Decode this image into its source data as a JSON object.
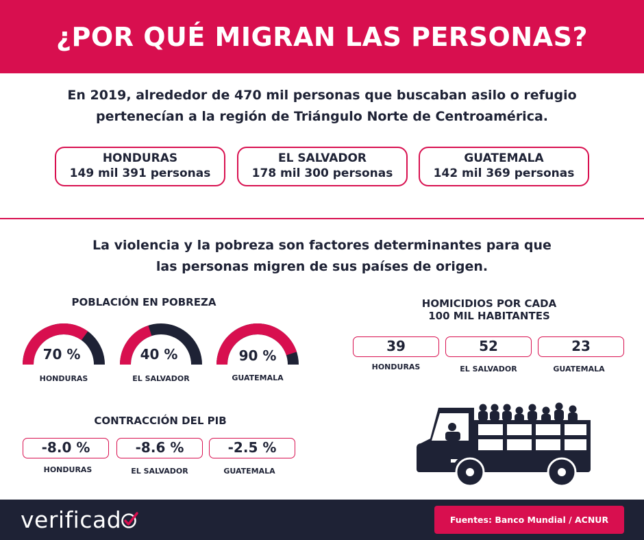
{
  "header": {
    "title": "¿POR QUÉ MIGRAN LAS PERSONAS?"
  },
  "intro": {
    "line1": "En 2019, alrededor de 470 mil personas que buscaban asilo o refugio",
    "line2": "pertenecían a la región de Triángulo Norte de Centroamérica."
  },
  "countries": [
    {
      "name": "HONDURAS",
      "value": "149 mil 391 personas"
    },
    {
      "name": "EL SALVADOR",
      "value": "178 mil 300 personas"
    },
    {
      "name": "GUATEMALA",
      "value": "142 mil 369 personas"
    }
  ],
  "factors": {
    "line1": "La violencia y la pobreza son factores determinantes para que",
    "line2": "las personas migren de sus países de origen."
  },
  "poverty": {
    "title": "POBLACIÓN EN POBREZA",
    "items": [
      {
        "country": "HONDURAS",
        "label": "70 %",
        "value": 70
      },
      {
        "country": "EL SALVADOR",
        "label": "40 %",
        "value": 40
      },
      {
        "country": "GUATEMALA",
        "label": "90 %",
        "value": 90
      }
    ]
  },
  "homicides": {
    "title_line1": "HOMICIDIOS POR CADA",
    "title_line2": "100 MIL HABITANTES",
    "items": [
      {
        "country": "HONDURAS",
        "value": "39"
      },
      {
        "country": "EL SALVADOR",
        "value": "52"
      },
      {
        "country": "GUATEMALA",
        "value": "23"
      }
    ]
  },
  "gdp": {
    "title": "CONTRACCIÓN DEL PIB",
    "items": [
      {
        "country": "HONDURAS",
        "value": "-8.0 %"
      },
      {
        "country": "EL SALVADOR",
        "value": "-8.6 %"
      },
      {
        "country": "GUATEMALA",
        "value": "-2.5 %"
      }
    ]
  },
  "footer": {
    "logo": "verificad",
    "sources": "Fuentes: Banco Mundial / ACNUR"
  },
  "colors": {
    "accent": "#d80f4f",
    "dark": "#1e2235"
  }
}
